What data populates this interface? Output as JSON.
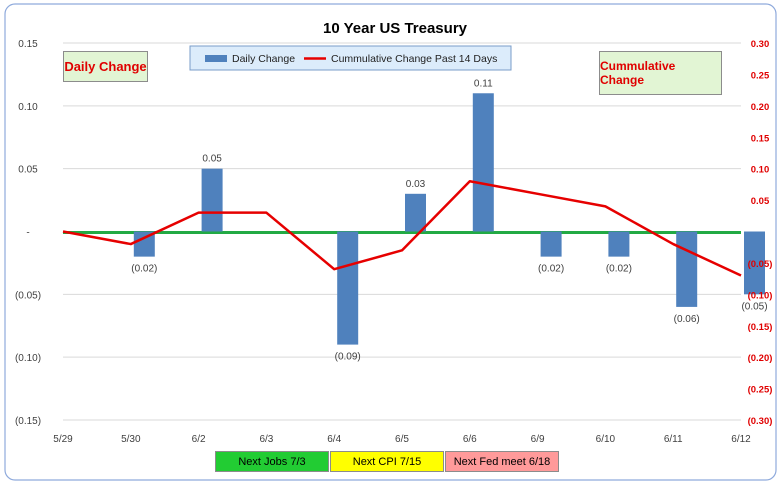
{
  "chart_data": {
    "type": "bar",
    "title": "10 Year US Treasury",
    "categories": [
      "5/29",
      "5/30",
      "6/2",
      "6/3",
      "6/4",
      "6/5",
      "6/6",
      "6/9",
      "6/10",
      "6/11",
      "6/12"
    ],
    "series": [
      {
        "name": "Daily Change",
        "type": "bar",
        "axis": "left",
        "values": [
          0,
          -0.02,
          0.05,
          0,
          -0.09,
          0.03,
          0.11,
          -0.02,
          -0.02,
          -0.06,
          -0.05
        ],
        "data_labels": [
          "",
          "(0.02)",
          "0.05",
          "",
          "(0.09)",
          "0.03",
          "0.11",
          "(0.02)",
          "(0.02)",
          "(0.06)",
          "(0.05)"
        ],
        "color": "#4f81bd"
      },
      {
        "name": "Cummulative Change Past 14 Days",
        "type": "line",
        "axis": "right",
        "values": [
          0.0,
          -0.02,
          0.03,
          0.03,
          -0.06,
          -0.03,
          0.08,
          0.06,
          0.04,
          -0.02,
          -0.07
        ],
        "color": "#e60000"
      }
    ],
    "y_left": {
      "range": [
        -0.15,
        0.15
      ],
      "ticks": [
        0.15,
        0.1,
        0.05,
        0,
        -0.05,
        -0.1,
        -0.15
      ],
      "tick_labels": [
        "0.15",
        "0.10",
        "0.05",
        "-",
        "(0.05)",
        "(0.10)",
        "(0.15)"
      ],
      "color": "#404040"
    },
    "y_right": {
      "range": [
        -0.3,
        0.3
      ],
      "ticks": [
        0.3,
        0.25,
        0.2,
        0.15,
        0.1,
        0.05,
        0,
        -0.05,
        -0.1,
        -0.15,
        -0.2,
        -0.25,
        -0.3
      ],
      "tick_labels": [
        "0.30",
        "0.25",
        "0.20",
        "0.15",
        "0.10",
        "0.05",
        "",
        "(0.05)",
        "(0.10)",
        "(0.15)",
        "(0.20)",
        "(0.25)",
        "(0.30)"
      ],
      "color": "#e00000"
    },
    "zero_line_color": "#22aa44",
    "grid": true,
    "legend": "top-center",
    "annotations": {
      "left_axis_label": "Daily Change",
      "right_axis_label": "Cummulative Change",
      "events": [
        {
          "label": "Next Jobs 7/3",
          "color": "#22cc33"
        },
        {
          "label": "Next CPI 7/15",
          "color": "#ffff00"
        },
        {
          "label": "Next Fed meet 6/18",
          "color": "#ff9a9a"
        }
      ]
    }
  }
}
